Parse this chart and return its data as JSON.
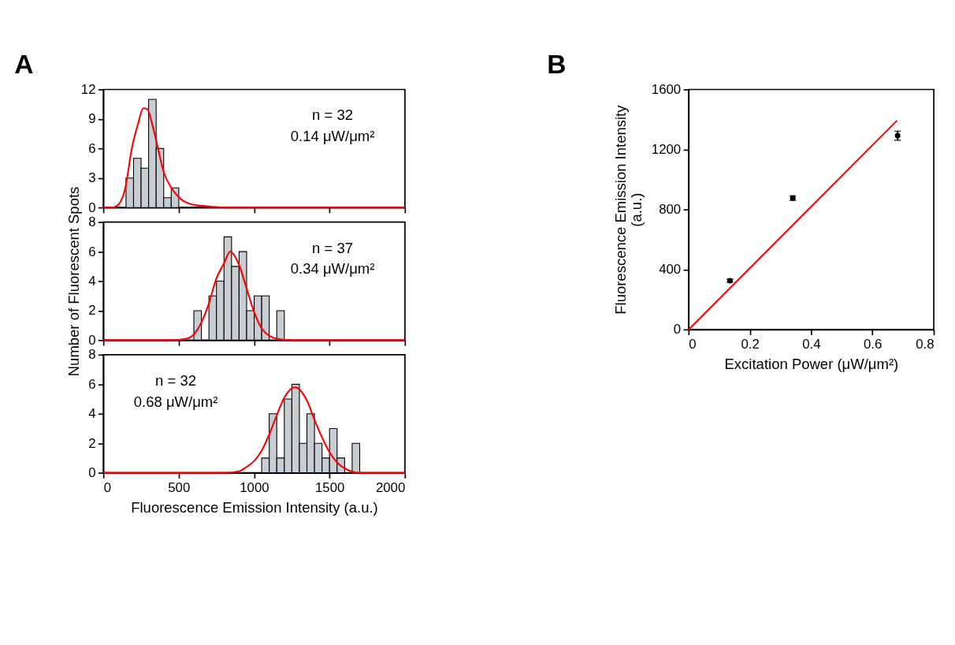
{
  "chart_data": [
    {
      "type": "histogram",
      "title": "A",
      "bins": [
        150,
        200,
        250,
        300,
        350,
        400,
        450,
        500
      ],
      "values": [
        3,
        5,
        4,
        11,
        6,
        1,
        2
      ],
      "color": "#c8ccd3",
      "series": [
        {
          "type": "line",
          "color": "#ff0000",
          "x": [
            0,
            60,
            100,
            144,
            191,
            228,
            265,
            292,
            325,
            355,
            400,
            451,
            503,
            592,
            711,
            830,
            2000
          ],
          "values": [
            0,
            0,
            0.3,
            1.9,
            6.2,
            8.4,
            10.1,
            10,
            8.4,
            6.5,
            3.6,
            2,
            1,
            0.3,
            0.1,
            0,
            0
          ]
        }
      ],
      "annotations": [
        "n = 32",
        "0.14 μW/μm²"
      ],
      "xlim": [
        0,
        2000
      ],
      "xticks": [
        0,
        500,
        1000,
        1500,
        2000
      ],
      "ylim": [
        0,
        12
      ],
      "yticks": [
        0,
        3,
        6,
        9,
        12
      ],
      "tick_labels": "y"
    },
    {
      "type": "histogram",
      "bins": [
        600,
        650,
        700,
        750,
        800,
        850,
        900,
        950,
        1000,
        1050,
        1100,
        1150,
        1200
      ],
      "values": [
        2,
        0,
        3,
        4,
        7,
        5,
        6,
        2,
        3,
        3,
        0,
        2
      ],
      "color": "#c8ccd3",
      "series": [
        {
          "type": "line",
          "color": "#ff0000",
          "x": [
            0,
            450,
            550,
            600,
            650,
            700,
            750,
            800,
            840,
            900,
            950,
            1000,
            1050,
            1100,
            1150,
            1250,
            2000
          ],
          "values": [
            0,
            0,
            0.1,
            0.4,
            1.2,
            2.5,
            4.2,
            5.2,
            6,
            5.1,
            3.5,
            1.9,
            0.8,
            0.3,
            0.1,
            0,
            0
          ]
        }
      ],
      "annotations": [
        "n = 37",
        "0.34 μW/μm²"
      ],
      "ylabel": "Number of  Fluorescent Spots",
      "xlim": [
        0,
        2000
      ],
      "xticks": [
        0,
        500,
        1000,
        1500,
        2000
      ],
      "ylim": [
        0,
        8
      ],
      "yticks": [
        0,
        2,
        4,
        6,
        8
      ],
      "tick_labels": "y"
    },
    {
      "type": "histogram",
      "bins": [
        1050,
        1100,
        1150,
        1200,
        1250,
        1300,
        1350,
        1400,
        1450,
        1500,
        1550,
        1600,
        1650,
        1700
      ],
      "values": [
        1,
        4,
        1,
        5,
        6,
        2,
        4,
        2,
        1,
        3,
        1,
        0,
        2
      ],
      "color": "#c8ccd3",
      "series": [
        {
          "type": "line",
          "color": "#ff0000",
          "x": [
            0,
            700,
            800,
            900,
            950,
            1000,
            1050,
            1100,
            1150,
            1200,
            1270,
            1350,
            1400,
            1450,
            1500,
            1550,
            1600,
            1700,
            1800,
            2000
          ],
          "values": [
            0,
            0,
            0,
            0.1,
            0.4,
            0.8,
            1.5,
            2.6,
            3.9,
            5.1,
            5.8,
            4.9,
            3.6,
            2.4,
            1.4,
            0.7,
            0.3,
            0,
            0,
            0
          ]
        }
      ],
      "annotations": [
        "n = 32",
        "0.68 μW/μm²"
      ],
      "xlabel": "Fluorescence Emission Intensity (a.u.)",
      "xlim": [
        0,
        2000
      ],
      "xticks": [
        0,
        500,
        1000,
        1500,
        2000
      ],
      "ylim": [
        0,
        8
      ],
      "yticks": [
        0,
        2,
        4,
        6,
        8
      ]
    },
    {
      "type": "scatter",
      "title": "B",
      "series": [
        {
          "type": "scatter",
          "marker": "circle",
          "color": "#000000",
          "x": [
            0.135,
            0.34,
            0.682
          ],
          "values": [
            326,
            876,
            1292
          ],
          "errors": [
            10,
            15,
            30
          ]
        },
        {
          "type": "line",
          "color": "#ff0000",
          "x": [
            0,
            0.68
          ],
          "values": [
            0,
            1393
          ]
        }
      ],
      "xlabel": "Excitation Power (μW/μm²)",
      "ylabel": "Fluorescence Emission Intensity (a.u.)",
      "xlim": [
        0,
        0.8
      ],
      "xticks": [
        0,
        0.2,
        0.4,
        0.6,
        0.8
      ],
      "ylim": [
        0,
        1600
      ],
      "yticks": [
        0,
        400,
        800,
        1200,
        1600
      ]
    }
  ]
}
